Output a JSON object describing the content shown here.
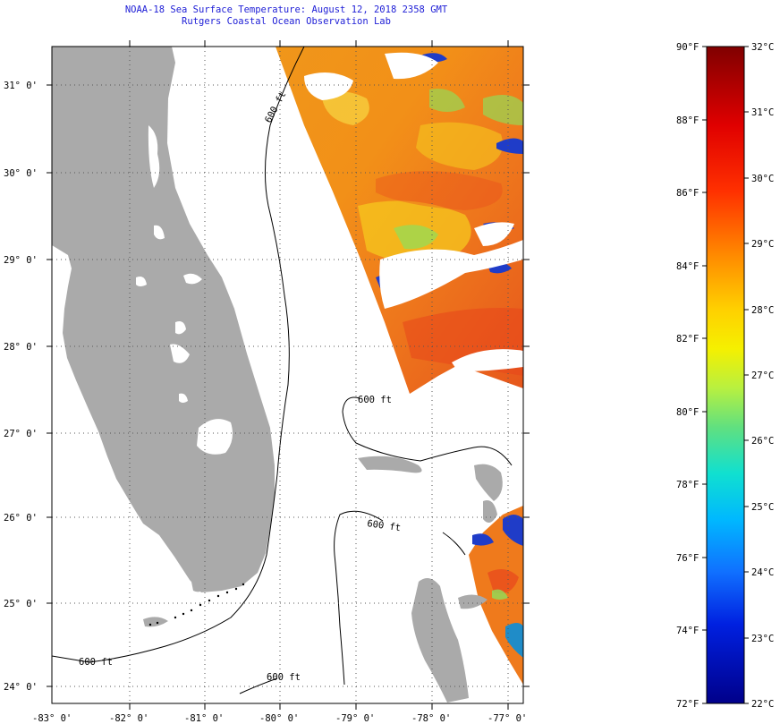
{
  "title_line1": "NOAA-18 Sea Surface Temperature:  August 12, 2018 2358 GMT",
  "title_line2": "Rutgers Coastal Ocean Observation Lab",
  "lat_ticks": [
    "31° 0'",
    "30° 0'",
    "29° 0'",
    "28° 0'",
    "27° 0'",
    "26° 0'",
    "25° 0'",
    "24° 0'"
  ],
  "lon_ticks": [
    "-83° 0'",
    "-82° 0'",
    "-81° 0'",
    "-80° 0'",
    "-79° 0'",
    "-78° 0'",
    "-77° 0'"
  ],
  "contour_labels": [
    "600 ft",
    "600 ft",
    "600 ft",
    "600 ft",
    "600 ft"
  ],
  "colorbar": {
    "f_labels": [
      "90°F",
      "88°F",
      "86°F",
      "84°F",
      "82°F",
      "80°F",
      "78°F",
      "76°F",
      "74°F",
      "72°F"
    ],
    "c_labels": [
      "32°C",
      "31°C",
      "30°C",
      "29°C",
      "28°C",
      "27°C",
      "26°C",
      "25°C",
      "24°C",
      "23°C",
      "22°C"
    ]
  },
  "colors": {
    "land": "#aaaaaa",
    "title": "#1d1dd6",
    "sst_warm": "#f28a14",
    "sst_hot": "#e8461c",
    "sst_mid": "#f5c81e",
    "sst_cool": "#8ee05a",
    "sst_cold": "#1f3cc8"
  }
}
